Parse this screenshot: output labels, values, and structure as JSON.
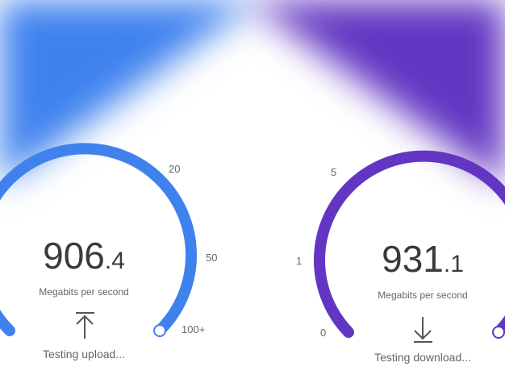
{
  "colors": {
    "upload": "#3f82ee",
    "download": "#6236c2"
  },
  "upload": {
    "value_int": "906",
    "value_dec": ".4",
    "unit": "Megabits per second",
    "status": "Testing upload...",
    "icon": "upload-arrow-icon",
    "ticks": [
      "20",
      "50",
      "100+"
    ]
  },
  "download": {
    "value_int": "931",
    "value_dec": ".1",
    "unit": "Megabits per second",
    "status": "Testing download...",
    "icon": "download-arrow-icon",
    "ticks": [
      "5",
      "1",
      "0"
    ]
  }
}
